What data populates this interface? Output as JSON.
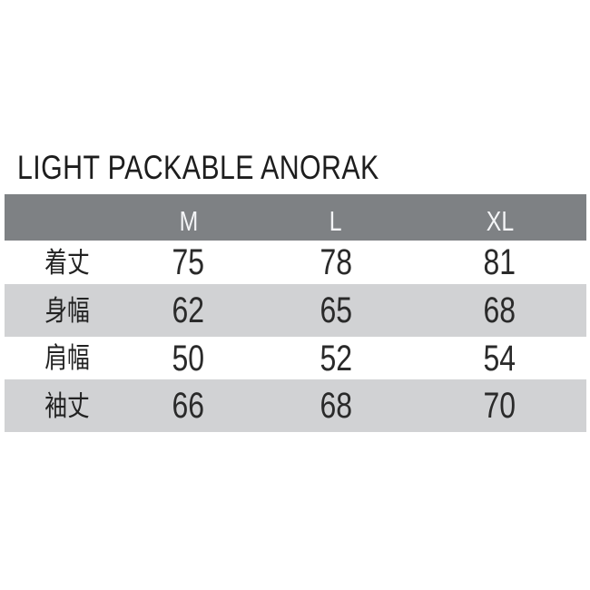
{
  "page": {
    "background": "#ffffff"
  },
  "product": {
    "title": "LIGHT PACKABLE ANORAK"
  },
  "size_chart": {
    "header": {
      "size_m": "M",
      "size_l": "L",
      "size_xl": "XL"
    },
    "rows": [
      {
        "label": "着丈",
        "m": "75",
        "l": "78",
        "xl": "81"
      },
      {
        "label": "身幅",
        "m": "62",
        "l": "65",
        "xl": "68"
      },
      {
        "label": "肩幅",
        "m": "50",
        "l": "52",
        "xl": "54"
      },
      {
        "label": "袖丈",
        "m": "66",
        "l": "68",
        "xl": "70"
      }
    ],
    "colors": {
      "header_bg": "#7e8184",
      "header_text": "#f4f5f7",
      "zebra_row_bg": "#d1d2d4",
      "white_row_bg": "#ffffff",
      "body_text": "#2a2a2a",
      "title_text": "#1d1d1d"
    }
  },
  "chart_data": {
    "type": "table",
    "title": "LIGHT PACKABLE ANORAK",
    "columns": [
      "",
      "M",
      "L",
      "XL"
    ],
    "rows": [
      [
        "着丈",
        75,
        78,
        81
      ],
      [
        "身幅",
        62,
        65,
        68
      ],
      [
        "肩幅",
        50,
        52,
        54
      ],
      [
        "袖丈",
        66,
        68,
        70
      ]
    ]
  }
}
